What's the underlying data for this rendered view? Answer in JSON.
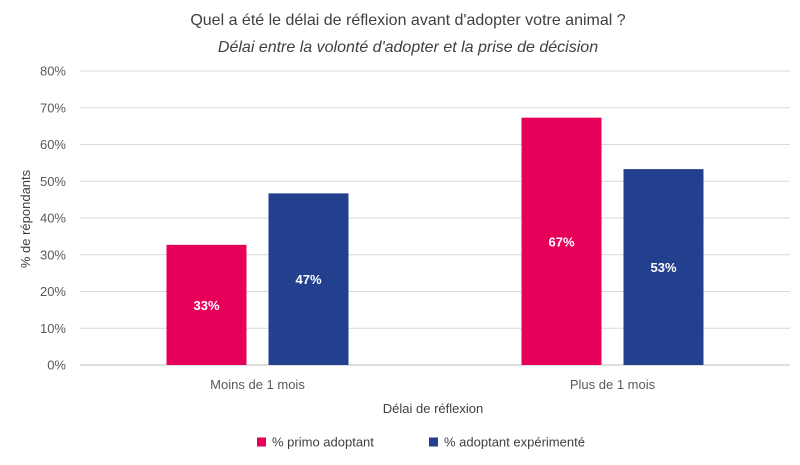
{
  "chart_data": {
    "type": "bar",
    "title": "Quel a été le délai de réflexion avant d'adopter votre animal ?",
    "subtitle": "Délai entre la volonté d'adopter et la prise de décision",
    "categories": [
      "Moins de 1 mois",
      "Plus de 1 mois"
    ],
    "series": [
      {
        "name": "% primo adoptant",
        "values": [
          32.7,
          67.3
        ],
        "labels": [
          "33%",
          "67%"
        ],
        "color": "#E6005A"
      },
      {
        "name": "% adoptant expérimenté",
        "values": [
          46.7,
          53.3
        ],
        "labels": [
          "47%",
          "53%"
        ],
        "color": "#22408E"
      }
    ],
    "xlabel": "Délai de réflexion",
    "ylabel": "% de répondants",
    "ylim": [
      0,
      80
    ],
    "yticks": [
      0,
      10,
      20,
      30,
      40,
      50,
      60,
      70,
      80
    ],
    "ytick_labels": [
      "0%",
      "10%",
      "20%",
      "30%",
      "40%",
      "50%",
      "60%",
      "70%",
      "80%"
    ],
    "grid": true,
    "legend_position": "bottom",
    "colors": {
      "gridline": "#D9D9D9",
      "axis": "#BFBFBF"
    }
  }
}
